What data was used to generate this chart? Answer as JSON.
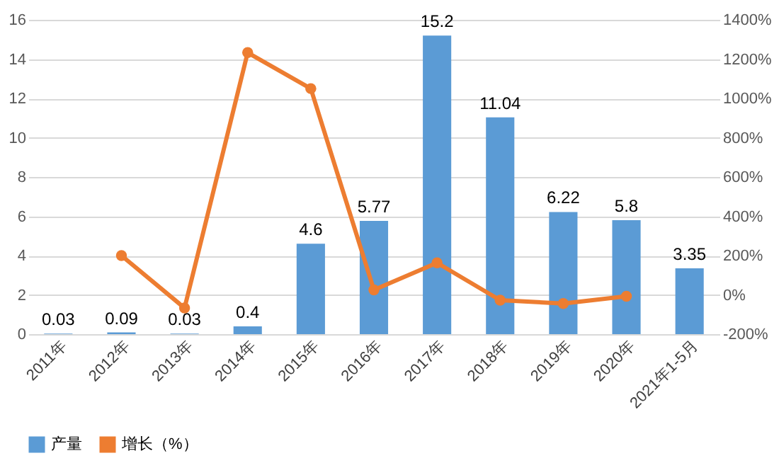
{
  "chart_data": {
    "type": "bar",
    "categories": [
      "2011年",
      "2012年",
      "2013年",
      "2014年",
      "2015年",
      "2016年",
      "2017年",
      "2018年",
      "2019年",
      "2020年",
      "2021年1-5月"
    ],
    "series": [
      {
        "name": "产量",
        "color": "#5b9bd5",
        "values": [
          0.03,
          0.09,
          0.03,
          0.4,
          4.6,
          5.77,
          15.2,
          11.04,
          6.22,
          5.8,
          3.35
        ],
        "value_labels": [
          "0.03",
          "0.09",
          "0.03",
          "0.4",
          "4.6",
          "5.77",
          "15.2",
          "11.04",
          "6.22",
          "5.8",
          "3.35"
        ]
      },
      {
        "name": "增长（%）",
        "type": "line",
        "axis": "y2",
        "color": "#ed7d31",
        "values": [
          null,
          200,
          -67,
          1233,
          1050,
          25,
          163,
          -27,
          -44,
          -7,
          null
        ]
      }
    ],
    "ylim": [
      0,
      16
    ],
    "yticks": [
      0,
      2,
      4,
      6,
      8,
      10,
      12,
      14,
      16
    ],
    "y2lim": [
      -200,
      1400
    ],
    "y2ticks": [
      {
        "value": -200,
        "label": "-200%"
      },
      {
        "value": 0,
        "label": "0%"
      },
      {
        "value": 200,
        "label": "200%"
      },
      {
        "value": 400,
        "label": "400%"
      },
      {
        "value": 600,
        "label": "600%"
      },
      {
        "value": 800,
        "label": "800%"
      },
      {
        "value": 1000,
        "label": "1000%"
      },
      {
        "value": 1200,
        "label": "1200%"
      },
      {
        "value": 1400,
        "label": "1400%"
      }
    ],
    "grid": "y",
    "legend": "bottom",
    "marker": "circle",
    "line_style": "solid"
  }
}
